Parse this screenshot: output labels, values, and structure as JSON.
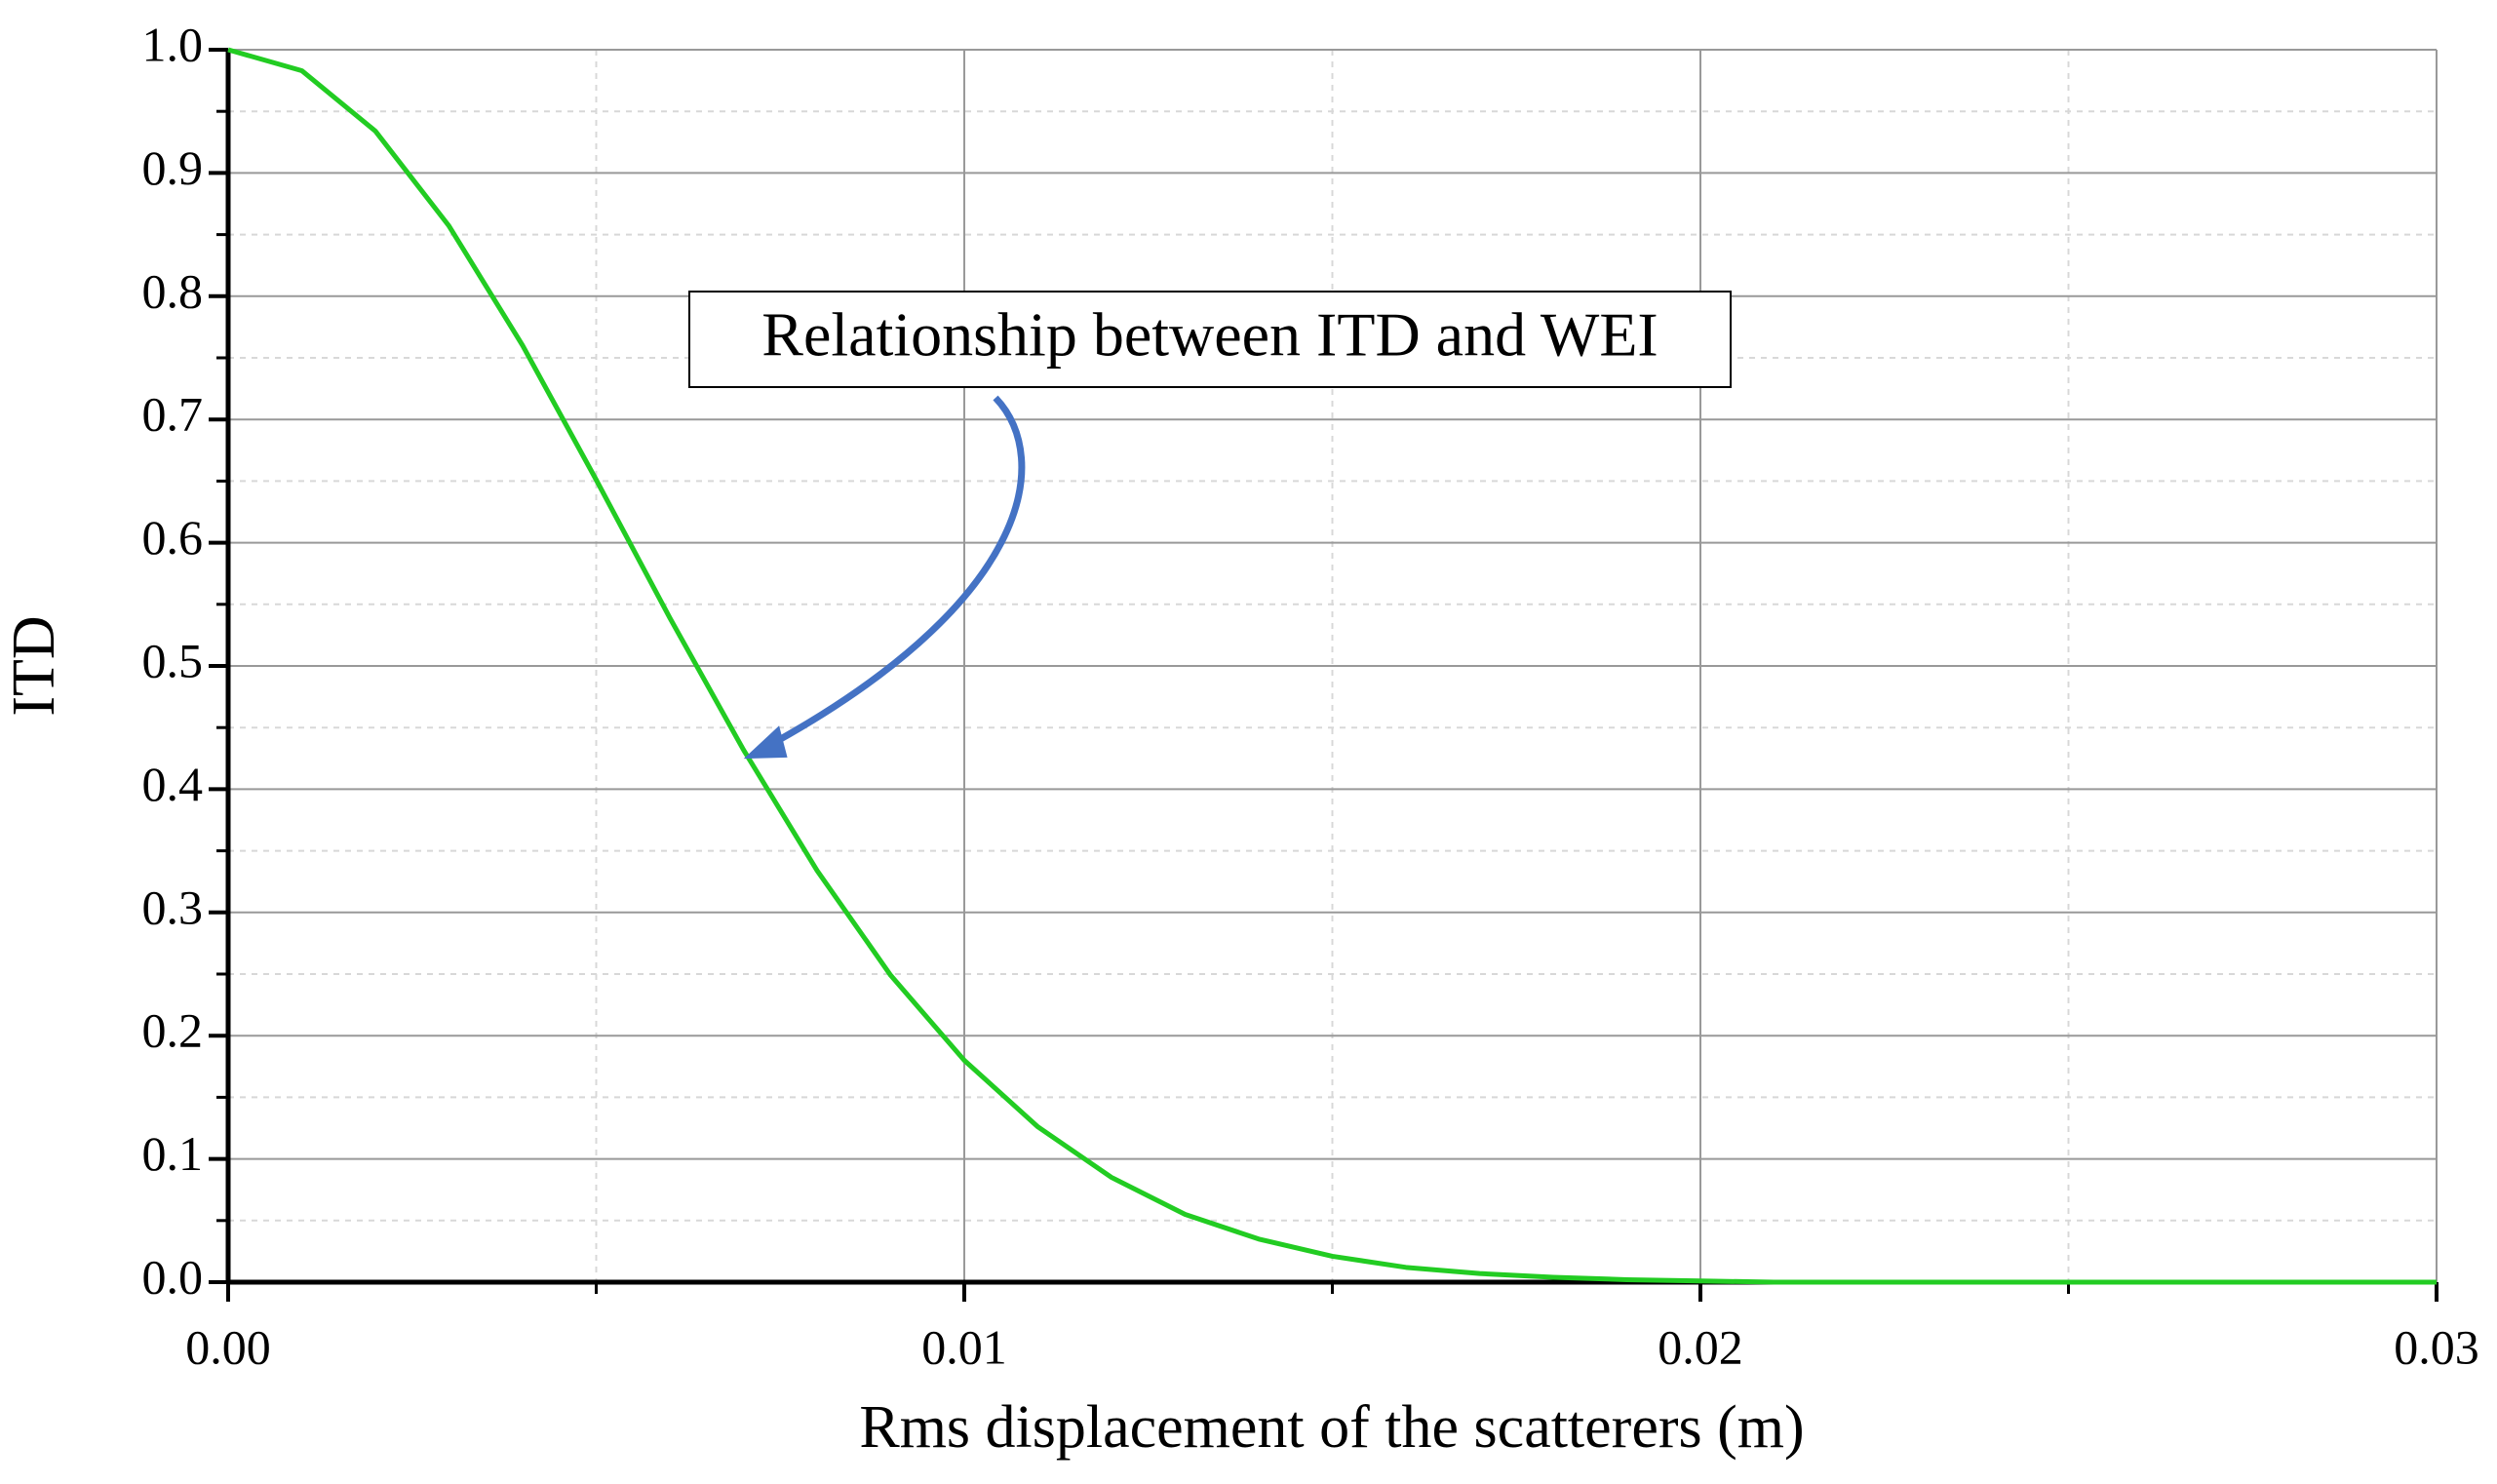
{
  "chart_data": {
    "type": "line",
    "x_label": "Rms displacement of the scatterers (m)",
    "y_label": "ITD",
    "annotation": "Relationship between ITD and WEI",
    "x": [
      0,
      0.001,
      0.002,
      0.003,
      0.004,
      0.005,
      0.006,
      0.007,
      0.008,
      0.009,
      0.01,
      0.011,
      0.012,
      0.013,
      0.014,
      0.015,
      0.016,
      0.017,
      0.018,
      0.019,
      0.02,
      0.021,
      0.022,
      0.023,
      0.024,
      0.025,
      0.026,
      0.027,
      0.028,
      0.029,
      0.03
    ],
    "series": [
      {
        "color": "#22cc22",
        "values": [
          1,
          0.983,
          0.934,
          0.857,
          0.76,
          0.651,
          0.539,
          0.432,
          0.334,
          0.249,
          0.18,
          0.126,
          0.085,
          0.055,
          0.035,
          0.021,
          0.012,
          0.007,
          0.004,
          0.002,
          0.001,
          0,
          0,
          0,
          0,
          0,
          0,
          0,
          0,
          0,
          0
        ]
      }
    ],
    "xlim": [
      0,
      0.03
    ],
    "ylim": [
      0,
      1
    ],
    "xticks": [
      {
        "value": 0,
        "label": "0.00"
      },
      0.01,
      0.02,
      0.03
    ],
    "yticks": [
      {
        "value": 0,
        "label": "0.0"
      },
      0.1,
      0.2,
      0.3,
      0.4,
      0.5,
      0.6,
      0.7,
      0.8,
      0.9,
      {
        "value": 1,
        "label": "1.0"
      }
    ],
    "xminorticks": [
      0.005,
      0.015,
      0.025
    ],
    "yminorticks": [
      0.05,
      0.15,
      0.25,
      0.35,
      0.45,
      0.55,
      0.65,
      0.75,
      0.85,
      0.95
    ],
    "grid": true
  }
}
